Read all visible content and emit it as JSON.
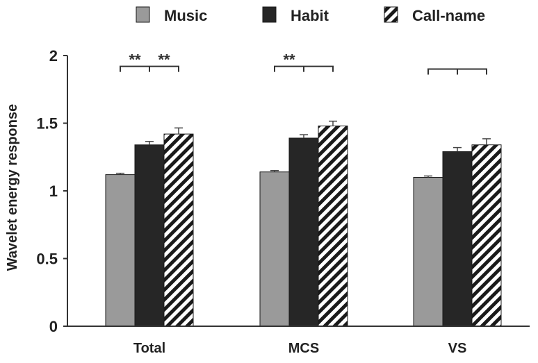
{
  "chart_data": {
    "type": "bar",
    "title": "",
    "xlabel": "",
    "ylabel": "Wavelet energy response",
    "ylim": [
      0,
      2
    ],
    "yticks": [
      {
        "value": 0,
        "label": "0"
      },
      {
        "value": 0.5,
        "label": "0.5"
      },
      {
        "value": 1,
        "label": "1"
      },
      {
        "value": 1.5,
        "label": "1.5"
      },
      {
        "value": 2,
        "label": "2"
      }
    ],
    "categories": [
      "Total",
      "MCS",
      "VS"
    ],
    "series": [
      {
        "name": "Music",
        "pattern": "solid",
        "color": "#9a9a9a",
        "values": [
          1.12,
          1.14,
          1.1
        ],
        "errors": [
          0.01,
          0.01,
          0.01
        ]
      },
      {
        "name": "Habit",
        "pattern": "solid",
        "color": "#262626",
        "values": [
          1.34,
          1.39,
          1.29
        ],
        "errors": [
          0.025,
          0.025,
          0.03
        ]
      },
      {
        "name": "Call-name",
        "pattern": "hatched",
        "color": "#1a1a1a",
        "values": [
          1.42,
          1.48,
          1.34
        ],
        "errors": [
          0.045,
          0.035,
          0.045
        ]
      }
    ],
    "significance": [
      {
        "category": 0,
        "level": 1.92,
        "left_label": "**",
        "right_label": "**"
      },
      {
        "category": 1,
        "level": 1.92,
        "left_label": "**",
        "right_label": ""
      },
      {
        "category": 2,
        "level": 1.9,
        "left_label": "",
        "right_label": ""
      }
    ],
    "legend_position": "top",
    "grid": false
  }
}
